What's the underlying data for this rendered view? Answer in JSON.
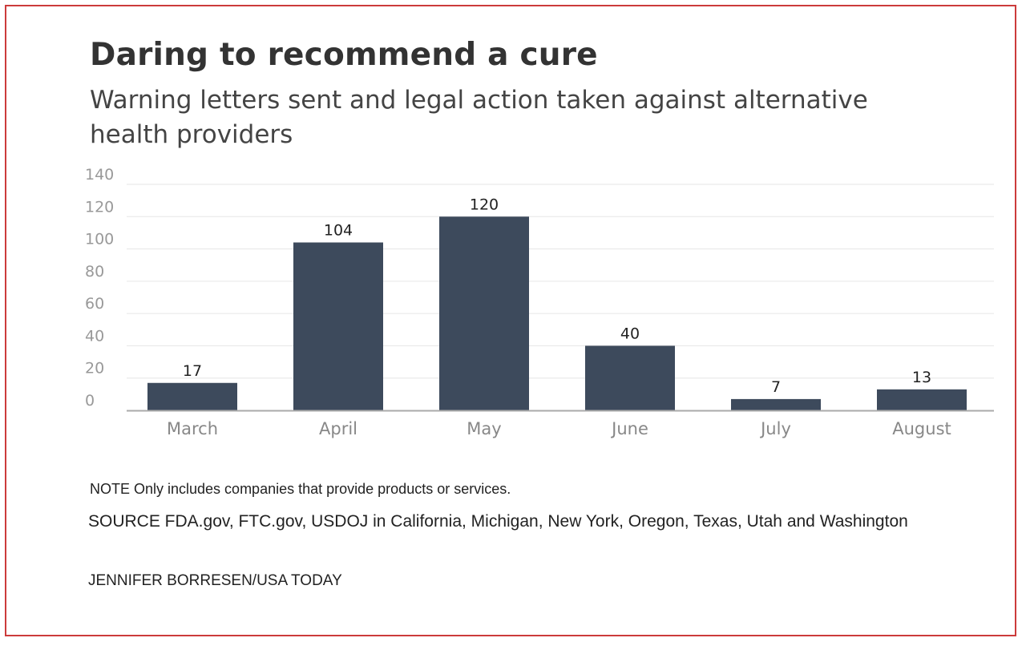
{
  "title": "Daring to recommend a cure",
  "subtitle": "Warning letters sent and legal action taken against alternative health providers",
  "note": "NOTE Only includes companies that provide products or services.",
  "source": "SOURCE FDA.gov, FTC.gov, USDOJ in California, Michigan, New York, Oregon, Texas, Utah and Washington",
  "credit": "JENNIFER BORRESEN/USA TODAY",
  "colors": {
    "bar": "#3d4a5c",
    "border": "#cc3b3b",
    "gridline": "#e6e6e6",
    "axis": "#aaaaaa"
  },
  "chart_data": {
    "type": "bar",
    "categories": [
      "March",
      "April",
      "May",
      "June",
      "July",
      "August"
    ],
    "values": [
      17,
      104,
      120,
      40,
      7,
      13
    ],
    "ylim": [
      0,
      140
    ],
    "yticks": [
      0,
      20,
      40,
      60,
      80,
      100,
      120,
      140
    ],
    "ytick_labels": [
      "0",
      "20",
      "40",
      "60",
      "80",
      "100",
      "120",
      "140"
    ],
    "data_labels": [
      "17",
      "104",
      "120",
      "40",
      "7",
      "13"
    ],
    "grid": true,
    "legend": false
  }
}
